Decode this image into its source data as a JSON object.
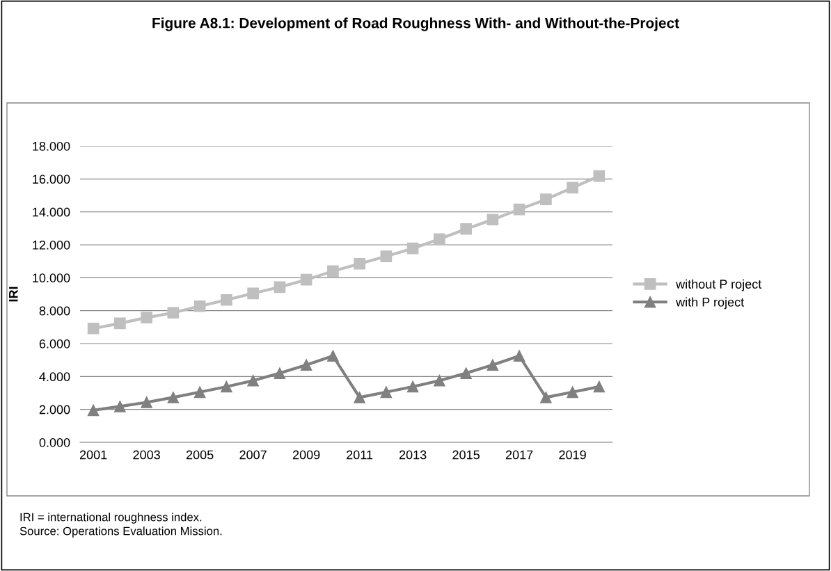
{
  "chart_data": {
    "type": "line",
    "title": "Figure A8.1: Development of Road Roughness With- and Without-the-Project",
    "ylabel": "IRI",
    "categories": [
      "2001",
      null,
      "2003",
      null,
      "2005",
      null,
      "2007",
      null,
      "2009",
      null,
      "2011",
      null,
      "2013",
      null,
      "2015",
      null,
      "2017",
      null,
      "2019",
      null
    ],
    "series": [
      {
        "name": "without P roject",
        "color": "#bfbfbf",
        "marker": "square",
        "values": [
          6.92,
          7.23,
          7.58,
          7.87,
          8.27,
          8.65,
          9.05,
          9.43,
          9.88,
          10.4,
          10.85,
          11.3,
          11.78,
          12.35,
          12.96,
          13.53,
          14.15,
          14.76,
          15.47,
          16.18
        ]
      },
      {
        "name": "with P roject",
        "color": "#808080",
        "marker": "triangle",
        "values": [
          1.95,
          2.18,
          2.43,
          2.73,
          3.05,
          3.38,
          3.75,
          4.2,
          4.7,
          5.25,
          2.73,
          3.05,
          3.38,
          3.75,
          4.2,
          4.7,
          5.25,
          2.73,
          3.05,
          3.38
        ]
      }
    ],
    "ylim": [
      0,
      18
    ],
    "yticks": [
      {
        "value": 0,
        "label": "0.000"
      },
      {
        "value": 2,
        "label": "2.000"
      },
      {
        "value": 4,
        "label": "4.000"
      },
      {
        "value": 6,
        "label": "6.000"
      },
      {
        "value": 8,
        "label": "8.000"
      },
      {
        "value": 10,
        "label": "10.000"
      },
      {
        "value": 12,
        "label": "12.000"
      },
      {
        "value": 14,
        "label": "14.000"
      },
      {
        "value": 16,
        "label": "16.000"
      },
      {
        "value": 18,
        "label": "18.000"
      }
    ],
    "grid": "y",
    "legend": "right",
    "line_style": "solid",
    "annotations": [
      "IRI = international roughness index.",
      "Source: Operations Evaluation Mission."
    ]
  }
}
